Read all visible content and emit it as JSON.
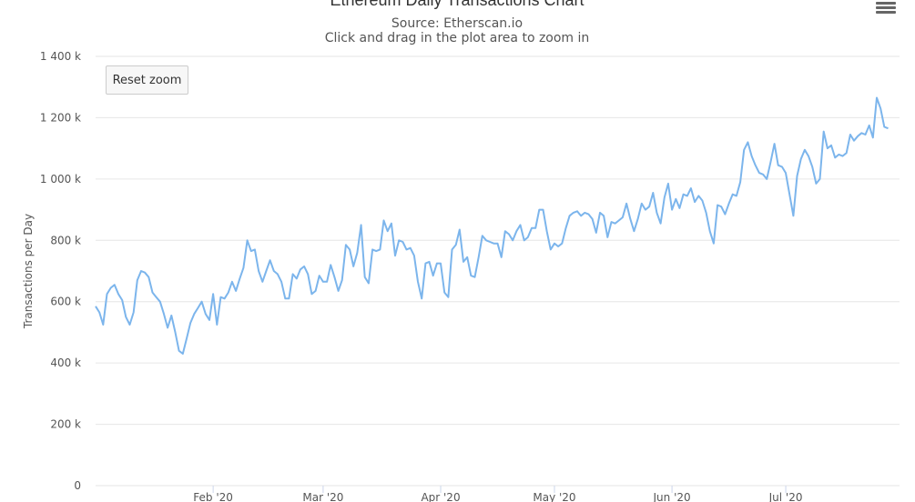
{
  "chart_data": {
    "type": "line",
    "title": "Ethereum Daily Transactions Chart",
    "subtitle": "Source: Etherscan.io",
    "instruction": "Click and drag in the plot area to zoom in",
    "xlabel": "",
    "ylabel": "Transactions per Day",
    "ylim": [
      0,
      1400000
    ],
    "xlim": [
      "2020-01-01",
      "2020-07-31"
    ],
    "y_ticks": [
      "0",
      "200 k",
      "400 k",
      "600 k",
      "800 k",
      "1 000 k",
      "1 200 k",
      "1 400 k"
    ],
    "x_ticks": [
      {
        "label": "Feb '20",
        "date": "2020-02-01"
      },
      {
        "label": "Mar '20",
        "date": "2020-03-01"
      },
      {
        "label": "Apr '20",
        "date": "2020-04-01"
      },
      {
        "label": "May '20",
        "date": "2020-05-01"
      },
      {
        "label": "Jun '20",
        "date": "2020-06-01"
      },
      {
        "label": "Jul '20",
        "date": "2020-07-01"
      }
    ],
    "grid": true,
    "legend": "none",
    "color": "#7cb5ec",
    "series": [
      {
        "values": [
          [
            0,
            585000
          ],
          [
            1,
            565000
          ],
          [
            2,
            525000
          ],
          [
            3,
            625000
          ],
          [
            4,
            645000
          ],
          [
            5,
            655000
          ],
          [
            6,
            625000
          ],
          [
            7,
            605000
          ],
          [
            8,
            550000
          ],
          [
            9,
            525000
          ],
          [
            10,
            565000
          ],
          [
            11,
            670000
          ],
          [
            12,
            700000
          ],
          [
            13,
            695000
          ],
          [
            14,
            680000
          ],
          [
            15,
            630000
          ],
          [
            16,
            615000
          ],
          [
            17,
            600000
          ],
          [
            18,
            560000
          ],
          [
            19,
            515000
          ],
          [
            20,
            555000
          ],
          [
            21,
            500000
          ],
          [
            22,
            440000
          ],
          [
            23,
            430000
          ],
          [
            24,
            480000
          ],
          [
            25,
            530000
          ],
          [
            26,
            560000
          ],
          [
            27,
            580000
          ],
          [
            28,
            600000
          ],
          [
            29,
            560000
          ],
          [
            30,
            540000
          ],
          [
            31,
            625000
          ],
          [
            32,
            525000
          ],
          [
            33,
            615000
          ],
          [
            34,
            610000
          ],
          [
            35,
            630000
          ],
          [
            36,
            665000
          ],
          [
            37,
            635000
          ],
          [
            38,
            675000
          ],
          [
            39,
            710000
          ],
          [
            40,
            800000
          ],
          [
            41,
            765000
          ],
          [
            42,
            770000
          ],
          [
            43,
            700000
          ],
          [
            44,
            665000
          ],
          [
            45,
            700000
          ],
          [
            46,
            735000
          ],
          [
            47,
            700000
          ],
          [
            48,
            690000
          ],
          [
            49,
            665000
          ],
          [
            50,
            610000
          ],
          [
            51,
            610000
          ],
          [
            52,
            690000
          ],
          [
            53,
            675000
          ],
          [
            54,
            705000
          ],
          [
            55,
            715000
          ],
          [
            56,
            690000
          ],
          [
            57,
            625000
          ],
          [
            58,
            635000
          ],
          [
            59,
            685000
          ],
          [
            60,
            665000
          ],
          [
            61,
            665000
          ],
          [
            62,
            720000
          ],
          [
            63,
            680000
          ],
          [
            64,
            635000
          ],
          [
            65,
            670000
          ],
          [
            66,
            785000
          ],
          [
            67,
            770000
          ],
          [
            68,
            715000
          ],
          [
            69,
            760000
          ],
          [
            70,
            850000
          ],
          [
            71,
            680000
          ],
          [
            72,
            660000
          ],
          [
            73,
            770000
          ],
          [
            74,
            765000
          ],
          [
            75,
            770000
          ],
          [
            76,
            865000
          ],
          [
            77,
            830000
          ],
          [
            78,
            855000
          ],
          [
            79,
            750000
          ],
          [
            80,
            800000
          ],
          [
            81,
            795000
          ],
          [
            82,
            770000
          ],
          [
            83,
            775000
          ],
          [
            84,
            750000
          ],
          [
            85,
            665000
          ],
          [
            86,
            610000
          ],
          [
            87,
            725000
          ],
          [
            88,
            730000
          ],
          [
            89,
            685000
          ],
          [
            90,
            725000
          ],
          [
            91,
            725000
          ],
          [
            92,
            630000
          ],
          [
            93,
            615000
          ],
          [
            94,
            770000
          ],
          [
            95,
            785000
          ],
          [
            96,
            835000
          ],
          [
            97,
            730000
          ],
          [
            98,
            745000
          ],
          [
            99,
            685000
          ],
          [
            100,
            680000
          ],
          [
            101,
            745000
          ],
          [
            102,
            815000
          ],
          [
            103,
            800000
          ],
          [
            104,
            795000
          ],
          [
            105,
            790000
          ],
          [
            106,
            790000
          ],
          [
            107,
            745000
          ],
          [
            108,
            830000
          ],
          [
            109,
            820000
          ],
          [
            110,
            800000
          ],
          [
            111,
            830000
          ],
          [
            112,
            850000
          ],
          [
            113,
            800000
          ],
          [
            114,
            810000
          ],
          [
            115,
            840000
          ],
          [
            116,
            840000
          ],
          [
            117,
            900000
          ],
          [
            118,
            900000
          ],
          [
            119,
            830000
          ],
          [
            120,
            770000
          ],
          [
            121,
            790000
          ],
          [
            122,
            780000
          ],
          [
            123,
            790000
          ],
          [
            124,
            840000
          ],
          [
            125,
            880000
          ],
          [
            126,
            890000
          ],
          [
            127,
            895000
          ],
          [
            128,
            880000
          ],
          [
            129,
            890000
          ],
          [
            130,
            885000
          ],
          [
            131,
            870000
          ],
          [
            132,
            825000
          ],
          [
            133,
            890000
          ],
          [
            134,
            880000
          ],
          [
            135,
            810000
          ],
          [
            136,
            860000
          ],
          [
            137,
            855000
          ],
          [
            138,
            865000
          ],
          [
            139,
            875000
          ],
          [
            140,
            920000
          ],
          [
            141,
            870000
          ],
          [
            142,
            830000
          ],
          [
            143,
            870000
          ],
          [
            144,
            920000
          ],
          [
            145,
            900000
          ],
          [
            146,
            910000
          ],
          [
            147,
            955000
          ],
          [
            148,
            890000
          ],
          [
            149,
            855000
          ],
          [
            150,
            940000
          ],
          [
            151,
            985000
          ],
          [
            152,
            900000
          ],
          [
            153,
            935000
          ],
          [
            154,
            905000
          ],
          [
            155,
            950000
          ],
          [
            156,
            945000
          ],
          [
            157,
            970000
          ],
          [
            158,
            925000
          ],
          [
            159,
            945000
          ],
          [
            160,
            930000
          ],
          [
            161,
            890000
          ],
          [
            162,
            830000
          ],
          [
            163,
            790000
          ],
          [
            164,
            915000
          ],
          [
            165,
            910000
          ],
          [
            166,
            885000
          ],
          [
            167,
            920000
          ],
          [
            168,
            950000
          ],
          [
            169,
            945000
          ],
          [
            170,
            990000
          ],
          [
            171,
            1095000
          ],
          [
            172,
            1120000
          ],
          [
            173,
            1075000
          ],
          [
            174,
            1045000
          ],
          [
            175,
            1020000
          ],
          [
            176,
            1015000
          ],
          [
            177,
            1000000
          ],
          [
            178,
            1055000
          ],
          [
            179,
            1115000
          ],
          [
            180,
            1045000
          ],
          [
            181,
            1040000
          ],
          [
            182,
            1020000
          ],
          [
            183,
            950000
          ],
          [
            184,
            880000
          ],
          [
            185,
            1010000
          ],
          [
            186,
            1065000
          ],
          [
            187,
            1095000
          ],
          [
            188,
            1075000
          ],
          [
            189,
            1040000
          ],
          [
            190,
            985000
          ],
          [
            191,
            1000000
          ],
          [
            192,
            1155000
          ],
          [
            193,
            1100000
          ],
          [
            194,
            1110000
          ],
          [
            195,
            1070000
          ],
          [
            196,
            1080000
          ],
          [
            197,
            1075000
          ],
          [
            198,
            1085000
          ],
          [
            199,
            1145000
          ],
          [
            200,
            1125000
          ],
          [
            201,
            1140000
          ],
          [
            202,
            1150000
          ],
          [
            203,
            1145000
          ],
          [
            204,
            1175000
          ],
          [
            205,
            1135000
          ],
          [
            206,
            1265000
          ],
          [
            207,
            1230000
          ],
          [
            208,
            1170000
          ],
          [
            209,
            1165000
          ]
        ]
      }
    ]
  },
  "ui": {
    "reset_zoom_label": "Reset zoom",
    "menu_icon": "hamburger-menu-icon"
  }
}
